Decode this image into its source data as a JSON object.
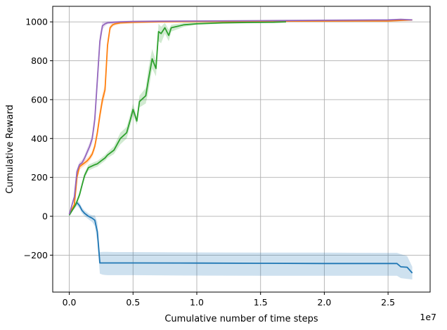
{
  "chart_data": {
    "type": "line",
    "title": "",
    "xlabel": "Cumulative number of time steps",
    "ylabel": "Cumulative Reward",
    "x_offset_label": "1e7",
    "xlim": [
      -0.13,
      2.83
    ],
    "ylim": [
      -390,
      1080
    ],
    "grid": true,
    "x_ticks": [
      0.0,
      0.5,
      1.0,
      1.5,
      2.0,
      2.5
    ],
    "x_tick_labels": [
      "0.0",
      "0.5",
      "1.0",
      "1.5",
      "2.0",
      "2.5"
    ],
    "y_ticks": [
      -200,
      0,
      200,
      400,
      600,
      800,
      1000
    ],
    "y_tick_labels": [
      "−200",
      "0",
      "200",
      "400",
      "600",
      "800",
      "1000"
    ],
    "series": [
      {
        "color": "#1f77b4",
        "x": [
          0.0,
          0.03,
          0.06,
          0.08,
          0.1,
          0.12,
          0.14,
          0.15,
          0.16,
          0.18,
          0.2,
          0.22,
          0.24,
          0.26,
          0.28,
          0.3,
          0.35,
          0.5,
          1.0,
          1.5,
          2.0,
          2.5,
          2.57,
          2.6,
          2.65,
          2.69
        ],
        "y": [
          10,
          40,
          70,
          55,
          30,
          15,
          5,
          0,
          -3,
          -10,
          -20,
          -80,
          -240,
          -240,
          -240,
          -240,
          -240,
          -240,
          -241,
          -242,
          -243,
          -243,
          -243,
          -260,
          -262,
          -292
        ],
        "lower": [
          10,
          30,
          55,
          40,
          15,
          0,
          -10,
          -15,
          -20,
          -30,
          -50,
          -130,
          -295,
          -300,
          -302,
          -303,
          -303,
          -303,
          -305,
          -306,
          -306,
          -306,
          -306,
          -318,
          -322,
          -325
        ],
        "upper": [
          10,
          50,
          85,
          70,
          45,
          30,
          20,
          15,
          10,
          5,
          5,
          -30,
          -185,
          -183,
          -183,
          -183,
          -184,
          -184,
          -186,
          -187,
          -187,
          -188,
          -188,
          -195,
          -205,
          -260
        ]
      },
      {
        "color": "#ff7f0e",
        "x": [
          0.0,
          0.04,
          0.06,
          0.08,
          0.1,
          0.12,
          0.14,
          0.16,
          0.18,
          0.2,
          0.22,
          0.24,
          0.26,
          0.28,
          0.3,
          0.32,
          0.34,
          0.36,
          0.4,
          0.5,
          0.7,
          1.0,
          1.5,
          2.0,
          2.5,
          2.69
        ],
        "y": [
          10,
          60,
          200,
          255,
          265,
          275,
          285,
          300,
          320,
          360,
          430,
          520,
          600,
          650,
          880,
          970,
          985,
          990,
          995,
          998,
          1000,
          1002,
          1003,
          1004,
          1005,
          1010
        ],
        "lower": [
          10,
          50,
          185,
          240,
          250,
          260,
          270,
          285,
          305,
          340,
          405,
          490,
          570,
          620,
          850,
          955,
          975,
          982,
          988,
          992,
          996,
          998,
          999,
          1000,
          1001,
          1006
        ],
        "upper": [
          10,
          70,
          215,
          270,
          280,
          290,
          300,
          315,
          335,
          380,
          455,
          550,
          630,
          680,
          910,
          985,
          995,
          998,
          1002,
          1004,
          1004,
          1006,
          1007,
          1008,
          1009,
          1014
        ]
      },
      {
        "color": "#2ca02c",
        "x": [
          0.0,
          0.05,
          0.08,
          0.1,
          0.12,
          0.15,
          0.2,
          0.22,
          0.25,
          0.28,
          0.3,
          0.35,
          0.4,
          0.45,
          0.48,
          0.5,
          0.53,
          0.55,
          0.6,
          0.62,
          0.65,
          0.68,
          0.7,
          0.72,
          0.75,
          0.78,
          0.8,
          0.9,
          1.0,
          1.2,
          1.4,
          1.6,
          1.7
        ],
        "y": [
          5,
          60,
          110,
          160,
          210,
          250,
          265,
          270,
          285,
          300,
          315,
          340,
          400,
          430,
          500,
          550,
          490,
          590,
          620,
          700,
          810,
          760,
          950,
          940,
          970,
          930,
          970,
          985,
          990,
          995,
          997,
          998,
          1000
        ],
        "lower": [
          5,
          50,
          95,
          145,
          195,
          235,
          250,
          255,
          270,
          285,
          300,
          320,
          370,
          400,
          470,
          520,
          470,
          560,
          580,
          640,
          760,
          720,
          900,
          890,
          940,
          900,
          950,
          975,
          985,
          990,
          993,
          995,
          997
        ],
        "upper": [
          5,
          70,
          125,
          175,
          225,
          265,
          280,
          285,
          300,
          315,
          330,
          360,
          430,
          460,
          530,
          580,
          510,
          620,
          660,
          760,
          860,
          800,
          990,
          975,
          995,
          960,
          985,
          995,
          998,
          1000,
          1001,
          1002,
          1003
        ]
      },
      {
        "color": "#9467bd",
        "x": [
          0.0,
          0.04,
          0.06,
          0.08,
          0.1,
          0.12,
          0.14,
          0.16,
          0.18,
          0.2,
          0.22,
          0.24,
          0.26,
          0.28,
          0.3,
          0.35,
          0.4,
          0.5,
          0.7,
          1.0,
          1.5,
          2.0,
          2.5,
          2.6,
          2.69
        ],
        "y": [
          10,
          100,
          230,
          265,
          275,
          300,
          330,
          360,
          400,
          500,
          700,
          900,
          980,
          990,
          995,
          998,
          1000,
          1002,
          1003,
          1004,
          1006,
          1008,
          1010,
          1013,
          1010
        ],
        "lower": [
          10,
          90,
          215,
          250,
          262,
          285,
          312,
          340,
          375,
          460,
          650,
          860,
          960,
          978,
          988,
          992,
          995,
          997,
          999,
          1000,
          1002,
          1004,
          1006,
          1009,
          1006
        ],
        "upper": [
          10,
          110,
          245,
          280,
          290,
          315,
          350,
          380,
          425,
          540,
          750,
          940,
          1000,
          1002,
          1003,
          1004,
          1005,
          1007,
          1008,
          1009,
          1010,
          1012,
          1014,
          1017,
          1014
        ]
      }
    ]
  }
}
